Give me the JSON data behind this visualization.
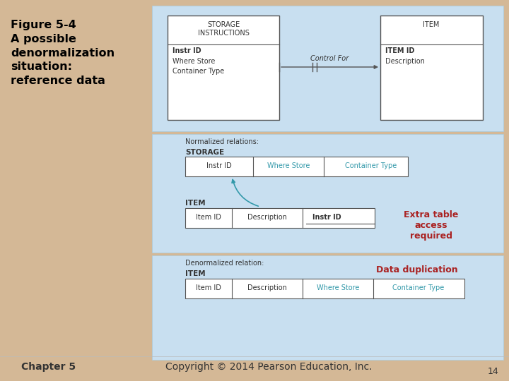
{
  "bg_color": "#D4B896",
  "panel_color": "#C8DFF0",
  "white": "#FFFFFF",
  "title_text": "Figure 5-4\nA possible\ndenormalization\nsituation:\nreference data",
  "title_color": "#000000",
  "teal_color": "#3399AA",
  "red_color": "#AA2222",
  "dark_text": "#333333",
  "footer_left": "Chapter 5",
  "footer_right": "Copyright © 2014 Pearson Education, Inc.",
  "page_num": "14"
}
